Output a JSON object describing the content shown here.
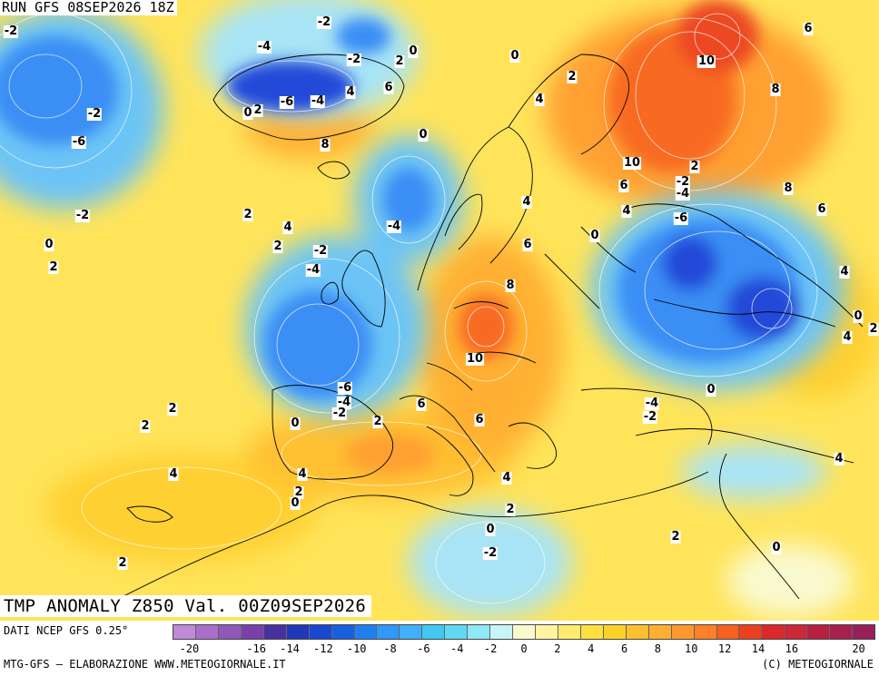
{
  "header": {
    "run_label": "RUN GFS 08SEP2026 18Z",
    "title": "TMP ANOMALY Z850 Val. 00Z09SEP2026"
  },
  "footer": {
    "source": "DATI NCEP GFS 0.25°",
    "credit_left": "MTG-GFS — ELABORAZIONE WWW.METEOGIORNALE.IT",
    "credit_right": "(C) METEOGIORNALE"
  },
  "legend": {
    "colors": [
      "#c08ad8",
      "#a870c8",
      "#9058b8",
      "#7840a8",
      "#4830a0",
      "#2038b8",
      "#1848d0",
      "#1860e0",
      "#2080f0",
      "#3098f8",
      "#40b0fa",
      "#40c8f0",
      "#60d8f0",
      "#90e8f4",
      "#c8f4f8",
      "#fafad0",
      "#fff4a0",
      "#ffec6e",
      "#ffe040",
      "#ffd22a",
      "#ffc030",
      "#ffae30",
      "#ff9830",
      "#ff8028",
      "#f86020",
      "#ec4020",
      "#dc2828",
      "#cc2838",
      "#b82040",
      "#a82050",
      "#98205a"
    ],
    "ticks": [
      "-20",
      "-18",
      "-16",
      "-14",
      "-12",
      "-10",
      "-8",
      "-6",
      "-4",
      "-2",
      "0",
      "2",
      "4",
      "6",
      "8",
      "10",
      "12",
      "14",
      "16",
      "18",
      "20"
    ],
    "labeled_ticks": [
      "-20",
      "-16",
      "-14",
      "-12",
      "-10",
      "-8",
      "-6",
      "-4",
      "-2",
      "0",
      "2",
      "4",
      "6",
      "8",
      "10",
      "12",
      "14",
      "16",
      "20"
    ]
  },
  "map": {
    "background": "#ffe45a",
    "cold_colors": {
      "deep": "#2448d8",
      "mid": "#3a8ef4",
      "light": "#6cc4f6",
      "pale": "#a8e4f6"
    },
    "warm_colors": {
      "light": "#ffd030",
      "mid": "#ffa030",
      "strong": "#f86a20",
      "hot": "#ec4820"
    },
    "contour_labels": [
      {
        "text": "-2"
      },
      {
        "text": "-2"
      },
      {
        "text": "-4"
      },
      {
        "text": "-2"
      },
      {
        "text": "2"
      },
      {
        "text": "0"
      },
      {
        "text": "0"
      },
      {
        "text": "6"
      },
      {
        "text": "2"
      },
      {
        "text": "-2"
      },
      {
        "text": "-6"
      },
      {
        "text": "-4"
      },
      {
        "text": "0"
      },
      {
        "text": "2"
      },
      {
        "text": "-6"
      },
      {
        "text": "-4"
      },
      {
        "text": "4"
      },
      {
        "text": "6"
      },
      {
        "text": "4"
      },
      {
        "text": "8"
      },
      {
        "text": "0"
      },
      {
        "text": "10"
      },
      {
        "text": "8"
      },
      {
        "text": "10"
      },
      {
        "text": "2"
      },
      {
        "text": "-2"
      },
      {
        "text": "-4"
      },
      {
        "text": "6"
      },
      {
        "text": "4"
      },
      {
        "text": "8"
      },
      {
        "text": "6"
      },
      {
        "text": "-6"
      },
      {
        "text": "4"
      },
      {
        "text": "-2"
      },
      {
        "text": "2"
      },
      {
        "text": "4"
      },
      {
        "text": "-4"
      },
      {
        "text": "2"
      },
      {
        "text": "0"
      },
      {
        "text": "2"
      },
      {
        "text": "-2"
      },
      {
        "text": "-4"
      },
      {
        "text": "6"
      },
      {
        "text": "0"
      },
      {
        "text": "8"
      },
      {
        "text": "4"
      },
      {
        "text": "0"
      },
      {
        "text": "2"
      },
      {
        "text": "4"
      },
      {
        "text": "10"
      },
      {
        "text": "-6"
      },
      {
        "text": "-4"
      },
      {
        "text": "-2"
      },
      {
        "text": "2"
      },
      {
        "text": "2"
      },
      {
        "text": "2"
      },
      {
        "text": "6"
      },
      {
        "text": "6"
      },
      {
        "text": "0"
      },
      {
        "text": "-4"
      },
      {
        "text": "-2"
      },
      {
        "text": "0"
      },
      {
        "text": "4"
      },
      {
        "text": "4"
      },
      {
        "text": "2"
      },
      {
        "text": "0"
      },
      {
        "text": "4"
      },
      {
        "text": "2"
      },
      {
        "text": "0"
      },
      {
        "text": "-2"
      },
      {
        "text": "2"
      },
      {
        "text": "0"
      },
      {
        "text": "2"
      },
      {
        "text": "4"
      }
    ]
  }
}
